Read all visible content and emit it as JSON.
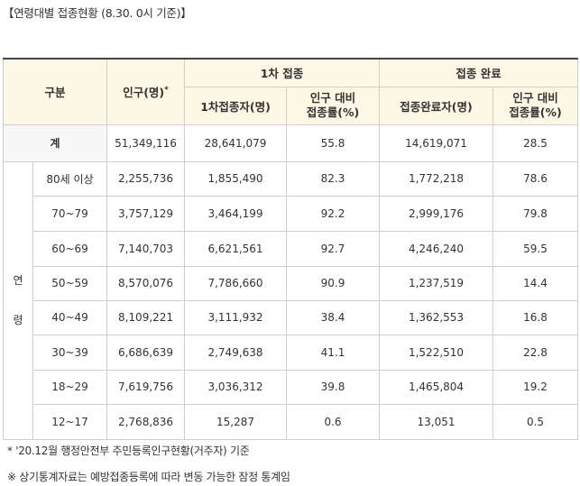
{
  "title": "【연령대별 접종현황 (8.30. 0시 기준)】",
  "header": {
    "gubun": "구분",
    "population": "인구(명)",
    "population_mark": "*",
    "first_dose": "1차 접종",
    "complete": "접종 완료",
    "first_count": "1차접종자(명)",
    "first_rate_l1": "인구 대비",
    "first_rate_l2": "접종률(%)",
    "complete_count": "접종완료자(명)",
    "complete_rate_l1": "인구 대비",
    "complete_rate_l2": "접종률(%)"
  },
  "total": {
    "label": "계",
    "population": "51,349,116",
    "first_count": "28,641,079",
    "first_rate": "55.8",
    "complete_count": "14,619,071",
    "complete_rate": "28.5"
  },
  "age_group_label_1": "연",
  "age_group_label_2": "령",
  "rows": [
    {
      "age": "80세 이상",
      "population": "2,255,736",
      "first_count": "1,855,490",
      "first_rate": "82.3",
      "complete_count": "1,772,218",
      "complete_rate": "78.6"
    },
    {
      "age": "70~79",
      "population": "3,757,129",
      "first_count": "3,464,199",
      "first_rate": "92.2",
      "complete_count": "2,999,176",
      "complete_rate": "79.8"
    },
    {
      "age": "60~69",
      "population": "7,140,703",
      "first_count": "6,621,561",
      "first_rate": "92.7",
      "complete_count": "4,246,240",
      "complete_rate": "59.5"
    },
    {
      "age": "50~59",
      "population": "8,570,076",
      "first_count": "7,786,660",
      "first_rate": "90.9",
      "complete_count": "1,237,519",
      "complete_rate": "14.4"
    },
    {
      "age": "40~49",
      "population": "8,109,221",
      "first_count": "3,111,932",
      "first_rate": "38.4",
      "complete_count": "1,362,553",
      "complete_rate": "16.8"
    },
    {
      "age": "30~39",
      "population": "6,686,639",
      "first_count": "2,749,638",
      "first_rate": "41.1",
      "complete_count": "1,522,510",
      "complete_rate": "22.8"
    },
    {
      "age": "18~29",
      "population": "7,619,756",
      "first_count": "3,036,312",
      "first_rate": "39.8",
      "complete_count": "1,465,804",
      "complete_rate": "19.2"
    },
    {
      "age": "12~17",
      "population": "2,768,836",
      "first_count": "15,287",
      "first_rate": "0.6",
      "complete_count": "13,051",
      "complete_rate": "0.5"
    }
  ],
  "footnotes": {
    "note1": "* '20.12월 행정안전부 주민등록인구현황(거주자) 기준",
    "note2": "※ 상기통계자료는 예방접종등록에 따라 변동 가능한 잠정 통계임"
  }
}
